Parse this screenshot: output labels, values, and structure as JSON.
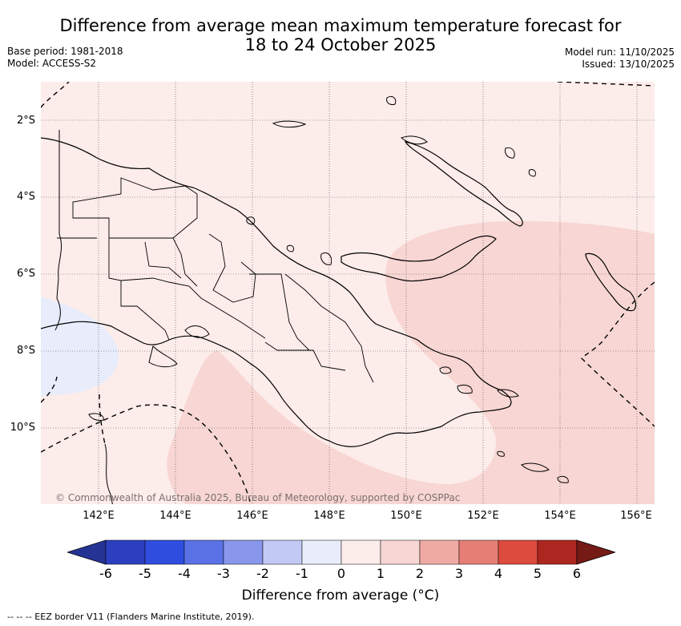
{
  "title_line1": "Difference from average mean maximum temperature forecast for",
  "title_line2": "18 to 24 October 2025",
  "base_period": "Base period: 1981-2018",
  "model": "Model: ACCESS-S2",
  "model_run": "Model run: 11/10/2025",
  "issued": "Issued: 13/10/2025",
  "lat_labels": [
    "2°S",
    "4°S",
    "6°S",
    "8°S",
    "10°S"
  ],
  "lon_labels": [
    "142°E",
    "144°E",
    "146°E",
    "148°E",
    "150°E",
    "152°E",
    "154°E",
    "156°E"
  ],
  "copyright": "© Commonwealth of Australia 2025, Bureau of Meteorology, supported by COSPPac",
  "colorbar": {
    "ticks": [
      "-6",
      "-5",
      "-4",
      "-3",
      "-2",
      "-1",
      "0",
      "1",
      "2",
      "3",
      "4",
      "5",
      "6"
    ],
    "colors": [
      "#253494",
      "#2c3fbf",
      "#2f4ee0",
      "#5a72e6",
      "#8897ec",
      "#c2c9f4",
      "#e8ecfb",
      "#fcecea",
      "#f7d6d3",
      "#f0aaa4",
      "#e57f76",
      "#dc4b3d",
      "#ad2620",
      "#761a16"
    ],
    "label": "Difference from average (°C)"
  },
  "footnote": "--  --  -- EEZ border V11 (Flanders Marine Institute, 2019)."
}
